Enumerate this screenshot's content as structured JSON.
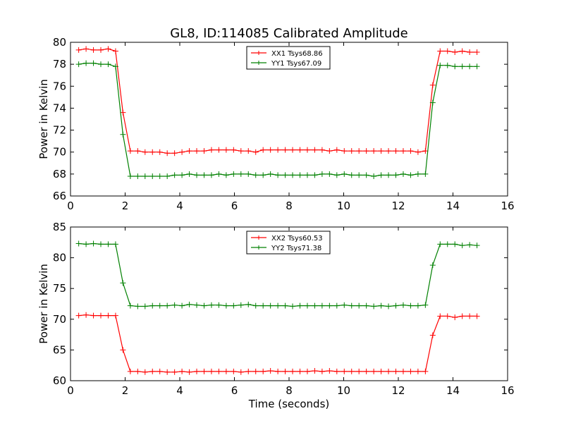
{
  "title": "GL8, ID:114085 Calibrated Amplitude",
  "chart_data": [
    {
      "type": "line",
      "ylabel": "Power in Kelvin",
      "xlabel": "",
      "xlim": [
        0,
        16
      ],
      "ylim": [
        66,
        80
      ],
      "xticks": [
        0,
        2,
        4,
        6,
        8,
        10,
        12,
        14,
        16
      ],
      "yticks": [
        66,
        68,
        70,
        72,
        74,
        76,
        78,
        80
      ],
      "grid": false,
      "legend_position": "top-center",
      "x": [
        0.3,
        0.57,
        0.84,
        1.11,
        1.38,
        1.65,
        1.92,
        2.19,
        2.46,
        2.73,
        3.0,
        3.27,
        3.54,
        3.81,
        4.08,
        4.35,
        4.62,
        4.89,
        5.16,
        5.43,
        5.7,
        5.97,
        6.24,
        6.51,
        6.78,
        7.05,
        7.32,
        7.59,
        7.86,
        8.13,
        8.4,
        8.67,
        8.94,
        9.21,
        9.48,
        9.75,
        10.02,
        10.29,
        10.56,
        10.83,
        11.1,
        11.37,
        11.64,
        11.91,
        12.18,
        12.45,
        12.72,
        12.99,
        13.26,
        13.53,
        13.8,
        14.07,
        14.34,
        14.61,
        14.88
      ],
      "series": [
        {
          "name": "XX1 Tsys68.86",
          "color": "#ff0000",
          "values": [
            79.3,
            79.4,
            79.3,
            79.3,
            79.4,
            79.2,
            73.6,
            70.1,
            70.1,
            70.0,
            70.0,
            70.0,
            69.9,
            69.9,
            70.0,
            70.1,
            70.1,
            70.1,
            70.2,
            70.2,
            70.2,
            70.2,
            70.1,
            70.1,
            70.0,
            70.2,
            70.2,
            70.2,
            70.2,
            70.2,
            70.2,
            70.2,
            70.2,
            70.2,
            70.1,
            70.2,
            70.1,
            70.1,
            70.1,
            70.1,
            70.1,
            70.1,
            70.1,
            70.1,
            70.1,
            70.1,
            70.0,
            70.1,
            76.1,
            79.2,
            79.2,
            79.1,
            79.2,
            79.1,
            79.1
          ]
        },
        {
          "name": "YY1 Tsys67.09",
          "color": "#008000",
          "values": [
            78.0,
            78.1,
            78.1,
            78.0,
            78.0,
            77.8,
            71.6,
            67.8,
            67.8,
            67.8,
            67.8,
            67.8,
            67.8,
            67.9,
            67.9,
            68.0,
            67.9,
            67.9,
            67.9,
            68.0,
            67.9,
            68.0,
            68.0,
            68.0,
            67.9,
            67.9,
            68.0,
            67.9,
            67.9,
            67.9,
            67.9,
            67.9,
            67.9,
            68.0,
            68.0,
            67.9,
            68.0,
            67.9,
            67.9,
            67.9,
            67.8,
            67.9,
            67.9,
            67.9,
            68.0,
            67.9,
            68.0,
            68.0,
            74.5,
            77.9,
            77.9,
            77.8,
            77.8,
            77.8,
            77.8
          ]
        }
      ]
    },
    {
      "type": "line",
      "ylabel": "Power in Kelvin",
      "xlabel": "Time (seconds)",
      "xlim": [
        0,
        16
      ],
      "ylim": [
        60,
        85
      ],
      "xticks": [
        0,
        2,
        4,
        6,
        8,
        10,
        12,
        14,
        16
      ],
      "yticks": [
        60,
        65,
        70,
        75,
        80,
        85
      ],
      "grid": false,
      "legend_position": "top-center",
      "x": [
        0.3,
        0.57,
        0.84,
        1.11,
        1.38,
        1.65,
        1.92,
        2.19,
        2.46,
        2.73,
        3.0,
        3.27,
        3.54,
        3.81,
        4.08,
        4.35,
        4.62,
        4.89,
        5.16,
        5.43,
        5.7,
        5.97,
        6.24,
        6.51,
        6.78,
        7.05,
        7.32,
        7.59,
        7.86,
        8.13,
        8.4,
        8.67,
        8.94,
        9.21,
        9.48,
        9.75,
        10.02,
        10.29,
        10.56,
        10.83,
        11.1,
        11.37,
        11.64,
        11.91,
        12.18,
        12.45,
        12.72,
        12.99,
        13.26,
        13.53,
        13.8,
        14.07,
        14.34,
        14.61,
        14.88
      ],
      "series": [
        {
          "name": "XX2 Tsys60.53",
          "color": "#ff0000",
          "values": [
            70.6,
            70.7,
            70.6,
            70.6,
            70.6,
            70.6,
            65.0,
            61.5,
            61.5,
            61.4,
            61.5,
            61.5,
            61.4,
            61.4,
            61.5,
            61.4,
            61.5,
            61.5,
            61.5,
            61.5,
            61.5,
            61.5,
            61.4,
            61.5,
            61.5,
            61.5,
            61.6,
            61.5,
            61.5,
            61.5,
            61.5,
            61.5,
            61.6,
            61.5,
            61.6,
            61.5,
            61.5,
            61.5,
            61.5,
            61.5,
            61.5,
            61.5,
            61.5,
            61.5,
            61.5,
            61.5,
            61.5,
            61.5,
            67.4,
            70.5,
            70.5,
            70.3,
            70.5,
            70.5,
            70.5
          ]
        },
        {
          "name": "YY2 Tsys71.38",
          "color": "#008000",
          "values": [
            82.3,
            82.2,
            82.3,
            82.2,
            82.2,
            82.2,
            75.9,
            72.2,
            72.1,
            72.1,
            72.2,
            72.2,
            72.2,
            72.3,
            72.2,
            72.4,
            72.3,
            72.2,
            72.3,
            72.3,
            72.2,
            72.2,
            72.3,
            72.4,
            72.2,
            72.2,
            72.2,
            72.2,
            72.2,
            72.1,
            72.2,
            72.2,
            72.2,
            72.2,
            72.2,
            72.2,
            72.3,
            72.2,
            72.2,
            72.2,
            72.1,
            72.2,
            72.1,
            72.2,
            72.3,
            72.2,
            72.2,
            72.3,
            78.8,
            82.2,
            82.2,
            82.2,
            82.0,
            82.1,
            82.0
          ]
        }
      ]
    }
  ]
}
